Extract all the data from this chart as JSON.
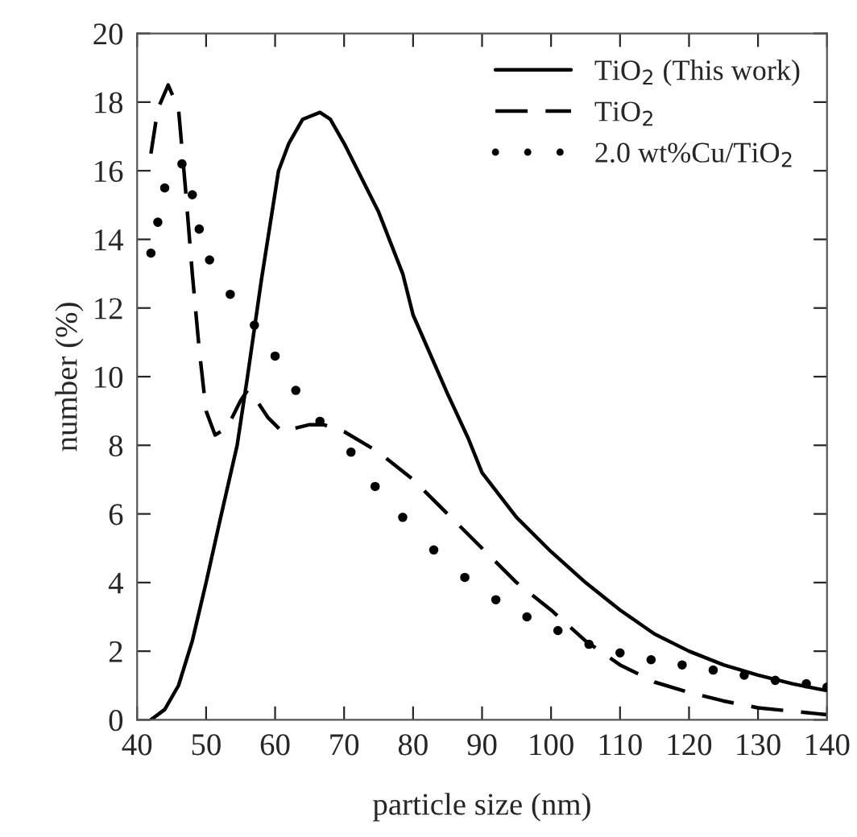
{
  "chart_data": {
    "type": "line",
    "xlabel": "particle size (nm)",
    "ylabel": "number (%)",
    "xlim": [
      40,
      140
    ],
    "xticks": [
      40,
      50,
      60,
      70,
      80,
      90,
      100,
      110,
      120,
      130,
      140
    ],
    "ylim": [
      0,
      20
    ],
    "yticks": [
      0,
      2,
      4,
      6,
      8,
      10,
      12,
      14,
      16,
      18,
      20
    ],
    "grid": false,
    "legend": "top right",
    "series": [
      {
        "name": "TiO$_{2}$ (This work)",
        "color": "#000000",
        "line_style": "solid",
        "x": [
          42,
          44,
          46,
          48,
          50,
          52,
          54.5,
          56,
          58,
          60.5,
          62,
          64,
          66.5,
          68,
          70,
          75,
          78.5,
          80,
          85,
          88,
          90,
          95,
          100,
          105,
          110,
          115,
          120,
          125,
          130,
          135,
          140
        ],
        "values": [
          0,
          0.3,
          1,
          2.3,
          4,
          5.8,
          8,
          10,
          12.8,
          16,
          16.8,
          17.5,
          17.7,
          17.5,
          16.8,
          14.8,
          13,
          11.8,
          9.5,
          8.2,
          7.2,
          5.9,
          4.9,
          4.0,
          3.2,
          2.5,
          2.0,
          1.6,
          1.3,
          1.05,
          0.85
        ]
      },
      {
        "name": "TiO$_{2}$",
        "color": "#000000",
        "line_style": "dashed",
        "x": [
          42,
          43,
          44.5,
          46,
          47,
          48,
          49,
          50,
          51.3,
          53,
          55,
          56,
          57,
          59,
          61,
          63,
          65,
          67,
          70,
          75,
          80,
          85,
          90,
          95,
          100,
          105,
          110,
          115,
          120,
          125,
          130,
          135,
          140
        ],
        "values": [
          16.5,
          17.8,
          18.5,
          17.8,
          15.5,
          13,
          10.8,
          9,
          8.3,
          8.5,
          9.3,
          9.6,
          9.4,
          8.8,
          8.4,
          8.5,
          8.6,
          8.6,
          8.4,
          7.8,
          7,
          6,
          5,
          4,
          3.2,
          2.3,
          1.6,
          1.1,
          0.8,
          0.55,
          0.35,
          0.25,
          0.15
        ]
      },
      {
        "name": "2.0 wt%Cu/TiO$_{2}$",
        "color": "#000000",
        "type": "scatter",
        "marker": "circle",
        "x": [
          42,
          43,
          44,
          46.5,
          48,
          49,
          50.5,
          53.5,
          57,
          60,
          63,
          66.5,
          71,
          74.5,
          78.5,
          83,
          87.5,
          92,
          96.5,
          101,
          105.5,
          110,
          114.5,
          119,
          123.5,
          128,
          132.5,
          137,
          140
        ],
        "values": [
          13.6,
          14.5,
          15.5,
          16.2,
          15.3,
          14.3,
          13.4,
          12.4,
          11.5,
          10.6,
          9.6,
          8.7,
          7.8,
          6.8,
          5.9,
          4.95,
          4.15,
          3.5,
          3.0,
          2.6,
          2.2,
          1.95,
          1.75,
          1.6,
          1.45,
          1.3,
          1.15,
          1.05,
          0.95
        ]
      }
    ]
  }
}
